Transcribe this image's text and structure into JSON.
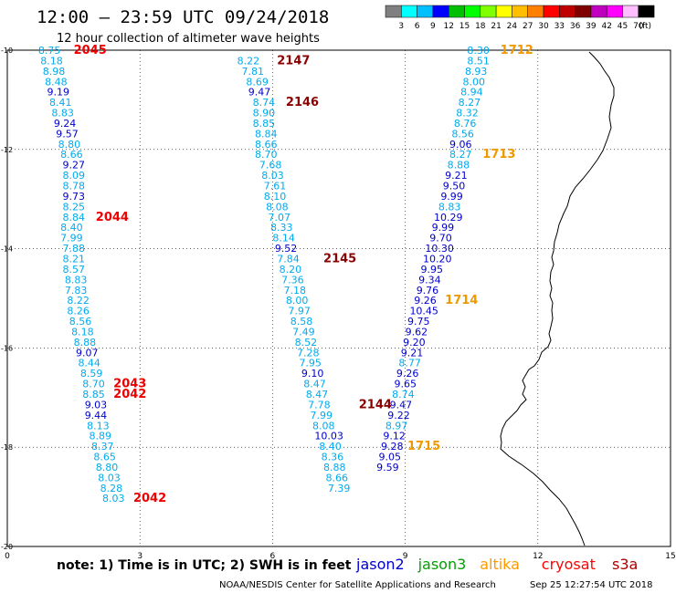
{
  "title": "12:00 – 23:59 UTC 09/24/2018",
  "subtitle": "12 hour collection of altimeter wave heights",
  "footer_note": "note: 1) Time is in UTC; 2) SWH is in feet",
  "credit": "NOAA/NESDIS Center for Satellite Applications and Research",
  "timestamp": "Sep 25 12:27:54 UTC 2018",
  "scale": {
    "unit": "(ft)",
    "labels": [
      "3",
      "6",
      "9",
      "12",
      "15",
      "18",
      "21",
      "24",
      "27",
      "30",
      "33",
      "36",
      "39",
      "42",
      "45",
      "70"
    ],
    "colors": [
      "#7f7f7f",
      "#00ffff",
      "#00bfff",
      "#0000ff",
      "#00bf00",
      "#00ff00",
      "#7fff00",
      "#ffff00",
      "#ffbf00",
      "#ff7f00",
      "#ff0000",
      "#bf0000",
      "#7f0000",
      "#bf00bf",
      "#ff00ff",
      "#ffbfff",
      "#000000"
    ]
  },
  "legend": [
    {
      "name": "jason2",
      "color": "#0000cc"
    },
    {
      "name": "jason3",
      "color": "#00a000"
    },
    {
      "name": "altika",
      "color": "#ff9900"
    },
    {
      "name": "cryosat",
      "color": "#ff0000"
    },
    {
      "name": "s3a",
      "color": "#aa0000"
    }
  ],
  "chart_data": {
    "type": "scatter",
    "xlim": [
      0,
      15
    ],
    "ylim": [
      -20,
      -10
    ],
    "x_ticks": [
      "0",
      "3",
      "6",
      "9",
      "12",
      "15"
    ],
    "y_ticks": [
      "-10",
      "-12",
      "-14",
      "-16",
      "-18",
      "-20"
    ],
    "grid": true,
    "tracks": [
      {
        "sat": "cryosat",
        "points": [
          {
            "x": 1.5,
            "y": -10.0,
            "v": "2045",
            "label": true
          },
          {
            "x": 0.7,
            "y": -10.0,
            "v": "8.75"
          },
          {
            "x": 0.75,
            "y": -10.21,
            "v": "8.18"
          },
          {
            "x": 0.8,
            "y": -10.42,
            "v": "8.98"
          },
          {
            "x": 0.85,
            "y": -10.63,
            "v": "8.48"
          },
          {
            "x": 0.9,
            "y": -10.84,
            "v": "9.19",
            "blue": true
          },
          {
            "x": 0.95,
            "y": -11.05,
            "v": "8.41"
          },
          {
            "x": 1.0,
            "y": -11.26,
            "v": "8.83"
          },
          {
            "x": 1.05,
            "y": -11.47,
            "v": "9.24",
            "blue": true
          },
          {
            "x": 1.1,
            "y": -11.68,
            "v": "9.57",
            "blue": true
          },
          {
            "x": 1.15,
            "y": -11.89,
            "v": "8.80"
          },
          {
            "x": 1.2,
            "y": -12.1,
            "v": "8.66"
          },
          {
            "x": 1.25,
            "y": -12.31,
            "v": "9.27",
            "blue": true
          },
          {
            "x": 1.25,
            "y": -12.52,
            "v": "8.09"
          },
          {
            "x": 1.25,
            "y": -12.73,
            "v": "8.78"
          },
          {
            "x": 1.25,
            "y": -12.94,
            "v": "9.73",
            "blue": true
          },
          {
            "x": 1.25,
            "y": -13.15,
            "v": "8.25"
          },
          {
            "x": 1.25,
            "y": -13.36,
            "v": "8.84"
          },
          {
            "x": 2.0,
            "y": -13.36,
            "v": "2044",
            "label": true
          },
          {
            "x": 1.2,
            "y": -13.57,
            "v": "8.40"
          },
          {
            "x": 1.2,
            "y": -13.78,
            "v": "7.99"
          },
          {
            "x": 1.25,
            "y": -13.99,
            "v": "7.88"
          },
          {
            "x": 1.25,
            "y": -14.2,
            "v": "8.21"
          },
          {
            "x": 1.25,
            "y": -14.41,
            "v": "8.57"
          },
          {
            "x": 1.3,
            "y": -14.62,
            "v": "8.83"
          },
          {
            "x": 1.3,
            "y": -14.83,
            "v": "7.83"
          },
          {
            "x": 1.35,
            "y": -15.04,
            "v": "8.22"
          },
          {
            "x": 1.35,
            "y": -15.25,
            "v": "8.26"
          },
          {
            "x": 1.4,
            "y": -15.46,
            "v": "8.56"
          },
          {
            "x": 1.45,
            "y": -15.67,
            "v": "8.18"
          },
          {
            "x": 1.5,
            "y": -15.88,
            "v": "8.88"
          },
          {
            "x": 1.55,
            "y": -16.09,
            "v": "9.07",
            "blue": true
          },
          {
            "x": 1.6,
            "y": -16.3,
            "v": "8.44"
          },
          {
            "x": 1.65,
            "y": -16.51,
            "v": "8.59"
          },
          {
            "x": 1.7,
            "y": -16.72,
            "v": "8.70"
          },
          {
            "x": 2.4,
            "y": -16.72,
            "v": "2043",
            "label": true
          },
          {
            "x": 1.7,
            "y": -16.93,
            "v": "8.85"
          },
          {
            "x": 2.4,
            "y": -16.93,
            "v": "2042",
            "label": true
          },
          {
            "x": 1.75,
            "y": -17.14,
            "v": "9.03",
            "blue": true
          },
          {
            "x": 1.75,
            "y": -17.35,
            "v": "9.44",
            "blue": true
          },
          {
            "x": 1.8,
            "y": -17.56,
            "v": "8.13"
          },
          {
            "x": 1.85,
            "y": -17.77,
            "v": "8.89"
          },
          {
            "x": 1.9,
            "y": -17.98,
            "v": "8.37"
          },
          {
            "x": 1.95,
            "y": -18.19,
            "v": "8.65"
          },
          {
            "x": 2.0,
            "y": -18.4,
            "v": "8.80"
          },
          {
            "x": 2.05,
            "y": -18.61,
            "v": "8.03"
          },
          {
            "x": 2.1,
            "y": -18.82,
            "v": "8.28"
          },
          {
            "x": 2.15,
            "y": -19.03,
            "v": "8.03"
          },
          {
            "x": 2.85,
            "y": -19.03,
            "v": "2042",
            "label": true
          }
        ]
      },
      {
        "sat": "s3a",
        "points": [
          {
            "x": 6.1,
            "y": -10.21,
            "v": "2147",
            "label": true
          },
          {
            "x": 5.2,
            "y": -10.21,
            "v": "8.22"
          },
          {
            "x": 5.3,
            "y": -10.42,
            "v": "7.81"
          },
          {
            "x": 5.4,
            "y": -10.63,
            "v": "8.69"
          },
          {
            "x": 5.45,
            "y": -10.84,
            "v": "9.47",
            "blue": true
          },
          {
            "x": 5.55,
            "y": -11.05,
            "v": "8.74"
          },
          {
            "x": 6.3,
            "y": -11.05,
            "v": "2146",
            "label": true
          },
          {
            "x": 5.55,
            "y": -11.26,
            "v": "8.90"
          },
          {
            "x": 5.55,
            "y": -11.47,
            "v": "8.85"
          },
          {
            "x": 5.6,
            "y": -11.68,
            "v": "8.84"
          },
          {
            "x": 5.6,
            "y": -11.89,
            "v": "8.66"
          },
          {
            "x": 5.6,
            "y": -12.1,
            "v": "8.70"
          },
          {
            "x": 5.7,
            "y": -12.31,
            "v": "7.68"
          },
          {
            "x": 5.75,
            "y": -12.52,
            "v": "8.03"
          },
          {
            "x": 5.8,
            "y": -12.73,
            "v": "7.61"
          },
          {
            "x": 5.8,
            "y": -12.94,
            "v": "8.10"
          },
          {
            "x": 5.85,
            "y": -13.15,
            "v": "8.08"
          },
          {
            "x": 5.9,
            "y": -13.36,
            "v": "7.07"
          },
          {
            "x": 5.95,
            "y": -13.57,
            "v": "8.33"
          },
          {
            "x": 6.0,
            "y": -13.78,
            "v": "8.14"
          },
          {
            "x": 6.05,
            "y": -13.99,
            "v": "9.52",
            "blue": true
          },
          {
            "x": 6.1,
            "y": -14.2,
            "v": "7.84"
          },
          {
            "x": 7.15,
            "y": -14.2,
            "v": "2145",
            "label": true
          },
          {
            "x": 6.15,
            "y": -14.41,
            "v": "8.20"
          },
          {
            "x": 6.2,
            "y": -14.62,
            "v": "7.36"
          },
          {
            "x": 6.25,
            "y": -14.83,
            "v": "7.18"
          },
          {
            "x": 6.3,
            "y": -15.04,
            "v": "8.00"
          },
          {
            "x": 6.35,
            "y": -15.25,
            "v": "7.97"
          },
          {
            "x": 6.4,
            "y": -15.46,
            "v": "8.58"
          },
          {
            "x": 6.45,
            "y": -15.67,
            "v": "7.49"
          },
          {
            "x": 6.5,
            "y": -15.88,
            "v": "8.52"
          },
          {
            "x": 6.55,
            "y": -16.09,
            "v": "7.28"
          },
          {
            "x": 6.6,
            "y": -16.3,
            "v": "7.95"
          },
          {
            "x": 6.65,
            "y": -16.51,
            "v": "9.10",
            "blue": true
          },
          {
            "x": 6.7,
            "y": -16.72,
            "v": "8.47"
          },
          {
            "x": 6.75,
            "y": -16.93,
            "v": "8.47"
          },
          {
            "x": 6.8,
            "y": -17.14,
            "v": "7.78"
          },
          {
            "x": 7.95,
            "y": -17.14,
            "v": "2144",
            "label": true
          },
          {
            "x": 6.85,
            "y": -17.35,
            "v": "7.99"
          },
          {
            "x": 6.9,
            "y": -17.56,
            "v": "8.08"
          },
          {
            "x": 6.95,
            "y": -17.77,
            "v": "10.03",
            "blue": true
          },
          {
            "x": 7.05,
            "y": -17.98,
            "v": "8.40"
          },
          {
            "x": 7.1,
            "y": -18.19,
            "v": "8.36"
          },
          {
            "x": 7.15,
            "y": -18.4,
            "v": "8.88"
          },
          {
            "x": 7.2,
            "y": -18.61,
            "v": "8.66"
          },
          {
            "x": 7.25,
            "y": -18.82,
            "v": "7.39"
          }
        ]
      },
      {
        "sat": "altika",
        "points": [
          {
            "x": 11.15,
            "y": -10.0,
            "v": "1712",
            "label": true
          },
          {
            "x": 10.4,
            "y": -10.0,
            "v": "8.30"
          },
          {
            "x": 10.4,
            "y": -10.21,
            "v": "8.51"
          },
          {
            "x": 10.35,
            "y": -10.42,
            "v": "8.93"
          },
          {
            "x": 10.3,
            "y": -10.63,
            "v": "8.00"
          },
          {
            "x": 10.25,
            "y": -10.84,
            "v": "8.94"
          },
          {
            "x": 10.2,
            "y": -11.05,
            "v": "8.27"
          },
          {
            "x": 10.15,
            "y": -11.26,
            "v": "8.32"
          },
          {
            "x": 10.1,
            "y": -11.47,
            "v": "8.76"
          },
          {
            "x": 10.05,
            "y": -11.68,
            "v": "8.56"
          },
          {
            "x": 10.0,
            "y": -11.89,
            "v": "9.06",
            "blue": true
          },
          {
            "x": 10.0,
            "y": -12.1,
            "v": "8.27"
          },
          {
            "x": 10.75,
            "y": -12.1,
            "v": "1713",
            "label": true
          },
          {
            "x": 9.95,
            "y": -12.31,
            "v": "8.88"
          },
          {
            "x": 9.9,
            "y": -12.52,
            "v": "9.21",
            "blue": true
          },
          {
            "x": 9.85,
            "y": -12.73,
            "v": "9.50",
            "blue": true
          },
          {
            "x": 9.8,
            "y": -12.94,
            "v": "9.99",
            "blue": true
          },
          {
            "x": 9.75,
            "y": -13.15,
            "v": "8.83"
          },
          {
            "x": 9.65,
            "y": -13.36,
            "v": "10.29",
            "blue": true
          },
          {
            "x": 9.6,
            "y": -13.57,
            "v": "9.99",
            "blue": true
          },
          {
            "x": 9.55,
            "y": -13.78,
            "v": "9.70",
            "blue": true
          },
          {
            "x": 9.45,
            "y": -13.99,
            "v": "10.30",
            "blue": true
          },
          {
            "x": 9.4,
            "y": -14.2,
            "v": "10.20",
            "blue": true
          },
          {
            "x": 9.35,
            "y": -14.41,
            "v": "9.95",
            "blue": true
          },
          {
            "x": 9.3,
            "y": -14.62,
            "v": "9.34",
            "blue": true
          },
          {
            "x": 9.25,
            "y": -14.83,
            "v": "9.76",
            "blue": true
          },
          {
            "x": 9.2,
            "y": -15.04,
            "v": "9.26",
            "blue": true
          },
          {
            "x": 9.9,
            "y": -15.04,
            "v": "1714",
            "label": true
          },
          {
            "x": 9.1,
            "y": -15.25,
            "v": "10.45",
            "blue": true
          },
          {
            "x": 9.05,
            "y": -15.46,
            "v": "9.75",
            "blue": true
          },
          {
            "x": 9.0,
            "y": -15.67,
            "v": "9.62",
            "blue": true
          },
          {
            "x": 8.95,
            "y": -15.88,
            "v": "9.20",
            "blue": true
          },
          {
            "x": 8.9,
            "y": -16.09,
            "v": "9.21",
            "blue": true
          },
          {
            "x": 8.85,
            "y": -16.3,
            "v": "8.77"
          },
          {
            "x": 8.8,
            "y": -16.51,
            "v": "9.26",
            "blue": true
          },
          {
            "x": 8.75,
            "y": -16.72,
            "v": "9.65",
            "blue": true
          },
          {
            "x": 8.7,
            "y": -16.93,
            "v": "8.74"
          },
          {
            "x": 8.65,
            "y": -17.14,
            "v": "9.47",
            "blue": true
          },
          {
            "x": 8.6,
            "y": -17.35,
            "v": "9.22",
            "blue": true
          },
          {
            "x": 8.55,
            "y": -17.56,
            "v": "8.97"
          },
          {
            "x": 8.5,
            "y": -17.77,
            "v": "9.12",
            "blue": true
          },
          {
            "x": 8.45,
            "y": -17.98,
            "v": "9.28",
            "blue": true
          },
          {
            "x": 9.05,
            "y": -17.98,
            "v": "1715",
            "label": true
          },
          {
            "x": 8.4,
            "y": -18.19,
            "v": "9.05",
            "blue": true
          },
          {
            "x": 8.35,
            "y": -18.4,
            "v": "9.59",
            "blue": true
          }
        ]
      }
    ]
  }
}
